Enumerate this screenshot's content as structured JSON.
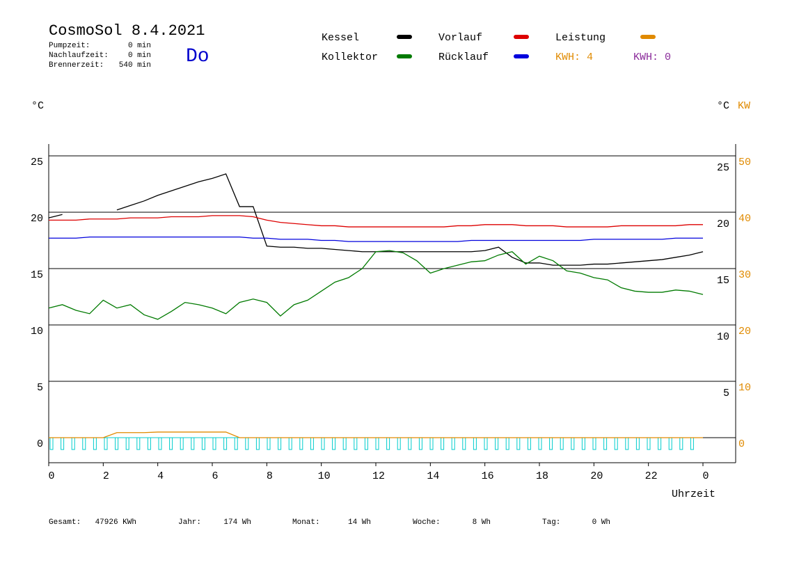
{
  "chart_data": {
    "type": "line",
    "title": "CosmoSol 8.4.2021",
    "weekday": "Do",
    "info": [
      {
        "label": "Pumpzeit:",
        "value": "0 min"
      },
      {
        "label": "Nachlaufzeit:",
        "value": "0 min"
      },
      {
        "label": "Brennerzeit:",
        "value": "540 min"
      }
    ],
    "kwh_labels": [
      {
        "text": "KWH: 4",
        "color": "#e08a00"
      },
      {
        "text": "KWH: 0",
        "color": "#8a2a9a"
      }
    ],
    "y_label": "°C",
    "y2_label": "°C",
    "y3_label": "KW",
    "x_label": "Uhrzeit",
    "x": [
      0,
      0.5,
      1,
      1.5,
      2,
      2.5,
      3,
      3.5,
      4,
      4.5,
      5,
      5.5,
      6,
      6.5,
      7,
      7.5,
      8,
      8.5,
      9,
      9.5,
      10,
      10.5,
      11,
      11.5,
      12,
      12.5,
      13,
      13.5,
      14,
      14.5,
      15,
      15.5,
      16,
      16.5,
      17,
      17.5,
      18,
      18.5,
      19,
      19.5,
      20,
      20.5,
      21,
      21.5,
      22,
      22.5,
      23,
      23.5,
      24
    ],
    "series": [
      {
        "name": "Kessel",
        "color": "#000000",
        "values": [
          19.5,
          19.8,
          null,
          null,
          null,
          20.2,
          20.6,
          21.0,
          21.5,
          21.9,
          22.3,
          22.7,
          23.0,
          23.4,
          20.5,
          20.5,
          17.0,
          16.9,
          16.9,
          16.8,
          16.8,
          16.7,
          16.6,
          16.5,
          16.5,
          16.5,
          16.5,
          16.5,
          16.5,
          16.5,
          16.5,
          16.5,
          16.6,
          16.9,
          16.0,
          15.5,
          15.5,
          15.3,
          15.3,
          15.3,
          15.4,
          15.4,
          15.5,
          15.6,
          15.7,
          15.8,
          16.0,
          16.2,
          16.5
        ]
      },
      {
        "name": "Kollektor",
        "color": "#007a00",
        "values": [
          11.5,
          11.8,
          11.3,
          11.0,
          12.2,
          11.5,
          11.8,
          10.9,
          10.5,
          11.2,
          12.0,
          11.8,
          11.5,
          11.0,
          12.0,
          12.3,
          12.0,
          10.8,
          11.8,
          12.2,
          13.0,
          13.8,
          14.2,
          15.0,
          16.5,
          16.6,
          16.4,
          15.7,
          14.6,
          15.0,
          15.3,
          15.6,
          15.7,
          16.2,
          16.5,
          15.4,
          16.1,
          15.7,
          14.8,
          14.6,
          14.2,
          14.0,
          13.3,
          13.0,
          12.9,
          12.9,
          13.1,
          13.0,
          12.7
        ]
      },
      {
        "name": "Vorlauf",
        "color": "#dd0000",
        "values": [
          19.3,
          19.3,
          19.3,
          19.4,
          19.4,
          19.4,
          19.5,
          19.5,
          19.5,
          19.6,
          19.6,
          19.6,
          19.7,
          19.7,
          19.7,
          19.6,
          19.3,
          19.1,
          19.0,
          18.9,
          18.8,
          18.8,
          18.7,
          18.7,
          18.7,
          18.7,
          18.7,
          18.7,
          18.7,
          18.7,
          18.8,
          18.8,
          18.9,
          18.9,
          18.9,
          18.8,
          18.8,
          18.8,
          18.7,
          18.7,
          18.7,
          18.7,
          18.8,
          18.8,
          18.8,
          18.8,
          18.8,
          18.9,
          18.9
        ]
      },
      {
        "name": "Rücklauf",
        "color": "#0000dd",
        "values": [
          17.7,
          17.7,
          17.7,
          17.8,
          17.8,
          17.8,
          17.8,
          17.8,
          17.8,
          17.8,
          17.8,
          17.8,
          17.8,
          17.8,
          17.8,
          17.7,
          17.7,
          17.6,
          17.6,
          17.6,
          17.5,
          17.5,
          17.4,
          17.4,
          17.4,
          17.4,
          17.4,
          17.4,
          17.4,
          17.4,
          17.4,
          17.5,
          17.5,
          17.5,
          17.5,
          17.5,
          17.5,
          17.5,
          17.5,
          17.5,
          17.6,
          17.6,
          17.6,
          17.6,
          17.6,
          17.6,
          17.7,
          17.7,
          17.7
        ]
      },
      {
        "name": "Leistung",
        "color": "#e08a00",
        "axis": "y3",
        "values": [
          0,
          0,
          0,
          0,
          0,
          0.9,
          0.9,
          0.9,
          1.0,
          1.0,
          1.0,
          1.0,
          1.0,
          1.0,
          0,
          0,
          0,
          0,
          0,
          0,
          0,
          0,
          0,
          0,
          0,
          0,
          0,
          0,
          0,
          0,
          0,
          0,
          0,
          0,
          0,
          0,
          0,
          0,
          0,
          0,
          0,
          0,
          0,
          0,
          0,
          0,
          0,
          0,
          0
        ]
      }
    ],
    "xlim": [
      0,
      25.2
    ],
    "xticks": [
      0,
      2,
      4,
      6,
      8,
      10,
      12,
      14,
      16,
      18,
      20,
      22,
      {
        "value": 24,
        "label": "0"
      }
    ],
    "ylim": [
      -2.22,
      26.05
    ],
    "yticks": [
      0,
      5,
      10,
      15,
      20,
      25
    ],
    "y2lim": [
      -1.23,
      27.04
    ],
    "y2ticks": [
      5,
      10,
      15,
      20,
      25
    ],
    "y3lim": [
      -4.44,
      52.1
    ],
    "y3ticks": [
      0,
      10,
      20,
      30,
      40,
      50
    ],
    "grid": true,
    "footer": [
      {
        "label": "Gesamt:",
        "value": "47926 KWh"
      },
      {
        "label": "Jahr:",
        "value": "174 Wh"
      },
      {
        "label": "Monat:",
        "value": "14 Wh"
      },
      {
        "label": "Woche:",
        "value": "8 Wh"
      },
      {
        "label": "Tag:",
        "value": "0 Wh"
      }
    ]
  }
}
